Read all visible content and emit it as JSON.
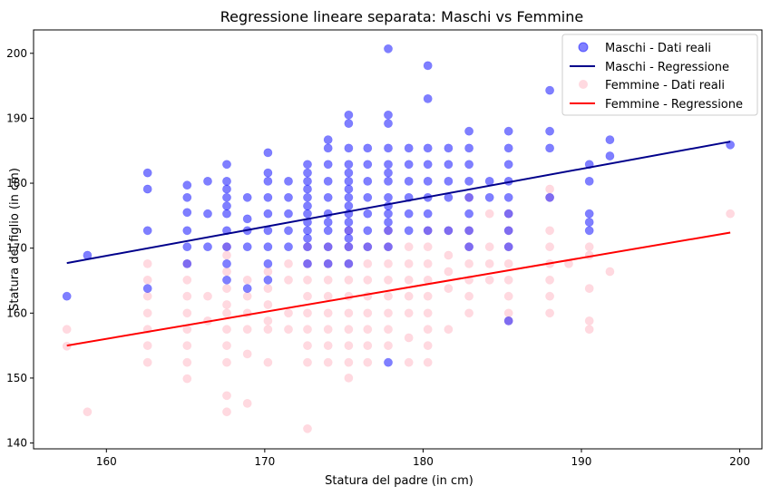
{
  "chart_data": {
    "type": "scatter",
    "title": "Regressione lineare separata: Maschi vs Femmine",
    "xlabel": "Statura del padre (in cm)",
    "ylabel": "Statura del figlio (in cm)",
    "xlim": [
      155.4,
      201.4
    ],
    "ylim": [
      139.1,
      203.6
    ],
    "xticks": [
      160,
      170,
      180,
      190,
      200
    ],
    "yticks": [
      140,
      150,
      160,
      170,
      180,
      190,
      200
    ],
    "grid": false,
    "legend_position": "top-right",
    "series": [
      {
        "name": "Maschi - Dati reali",
        "kind": "scatter",
        "color": "#0000ff",
        "opacity": 0.5,
        "points": [
          [
            157.5,
            162.6
          ],
          [
            158.8,
            168.9
          ],
          [
            162.6,
            181.6
          ],
          [
            162.6,
            179.1
          ],
          [
            162.6,
            172.7
          ],
          [
            162.6,
            163.8
          ],
          [
            165.1,
            179.7
          ],
          [
            165.1,
            177.8
          ],
          [
            165.1,
            175.5
          ],
          [
            165.1,
            172.7
          ],
          [
            165.1,
            170.2
          ],
          [
            165.1,
            167.6
          ],
          [
            166.4,
            180.3
          ],
          [
            166.4,
            175.3
          ],
          [
            166.4,
            170.2
          ],
          [
            167.6,
            182.9
          ],
          [
            167.6,
            180.3
          ],
          [
            167.6,
            179.1
          ],
          [
            167.6,
            177.8
          ],
          [
            167.6,
            176.5
          ],
          [
            167.6,
            175.3
          ],
          [
            167.6,
            172.7
          ],
          [
            167.6,
            170.2
          ],
          [
            167.6,
            167.6
          ],
          [
            167.6,
            165.1
          ],
          [
            168.9,
            177.8
          ],
          [
            168.9,
            174.5
          ],
          [
            168.9,
            172.7
          ],
          [
            168.9,
            170.2
          ],
          [
            168.9,
            163.8
          ],
          [
            170.2,
            184.7
          ],
          [
            170.2,
            181.6
          ],
          [
            170.2,
            180.3
          ],
          [
            170.2,
            177.8
          ],
          [
            170.2,
            175.3
          ],
          [
            170.2,
            172.7
          ],
          [
            170.2,
            170.2
          ],
          [
            170.2,
            167.6
          ],
          [
            170.2,
            165.1
          ],
          [
            171.5,
            180.3
          ],
          [
            171.5,
            177.8
          ],
          [
            171.5,
            175.3
          ],
          [
            171.5,
            172.7
          ],
          [
            171.5,
            170.2
          ],
          [
            172.7,
            182.9
          ],
          [
            172.7,
            181.6
          ],
          [
            172.7,
            180.3
          ],
          [
            172.7,
            179.1
          ],
          [
            172.7,
            177.8
          ],
          [
            172.7,
            176.5
          ],
          [
            172.7,
            175.3
          ],
          [
            172.7,
            174.0
          ],
          [
            172.7,
            172.7
          ],
          [
            172.7,
            171.5
          ],
          [
            172.7,
            170.2
          ],
          [
            172.7,
            167.6
          ],
          [
            174.0,
            186.7
          ],
          [
            174.0,
            185.4
          ],
          [
            174.0,
            182.9
          ],
          [
            174.0,
            180.3
          ],
          [
            174.0,
            177.8
          ],
          [
            174.0,
            175.3
          ],
          [
            174.0,
            174.0
          ],
          [
            174.0,
            172.7
          ],
          [
            174.0,
            170.2
          ],
          [
            174.0,
            167.6
          ],
          [
            175.3,
            190.5
          ],
          [
            175.3,
            189.2
          ],
          [
            175.3,
            185.4
          ],
          [
            175.3,
            182.9
          ],
          [
            175.3,
            181.6
          ],
          [
            175.3,
            180.3
          ],
          [
            175.3,
            179.1
          ],
          [
            175.3,
            177.8
          ],
          [
            175.3,
            176.5
          ],
          [
            175.3,
            175.3
          ],
          [
            175.3,
            174.0
          ],
          [
            175.3,
            172.7
          ],
          [
            175.3,
            171.5
          ],
          [
            175.3,
            170.2
          ],
          [
            175.3,
            167.6
          ],
          [
            176.5,
            185.4
          ],
          [
            176.5,
            182.9
          ],
          [
            176.5,
            180.3
          ],
          [
            176.5,
            177.8
          ],
          [
            176.5,
            175.3
          ],
          [
            176.5,
            172.7
          ],
          [
            176.5,
            170.2
          ],
          [
            177.8,
            200.7
          ],
          [
            177.8,
            190.5
          ],
          [
            177.8,
            189.2
          ],
          [
            177.8,
            185.4
          ],
          [
            177.8,
            182.9
          ],
          [
            177.8,
            181.6
          ],
          [
            177.8,
            180.3
          ],
          [
            177.8,
            177.8
          ],
          [
            177.8,
            176.5
          ],
          [
            177.8,
            175.3
          ],
          [
            177.8,
            174.0
          ],
          [
            177.8,
            172.7
          ],
          [
            177.8,
            170.2
          ],
          [
            177.8,
            152.4
          ],
          [
            179.1,
            185.4
          ],
          [
            179.1,
            182.9
          ],
          [
            179.1,
            180.3
          ],
          [
            179.1,
            177.8
          ],
          [
            179.1,
            175.3
          ],
          [
            179.1,
            172.7
          ],
          [
            180.3,
            198.1
          ],
          [
            180.3,
            193.0
          ],
          [
            180.3,
            185.4
          ],
          [
            180.3,
            182.9
          ],
          [
            180.3,
            180.3
          ],
          [
            180.3,
            177.8
          ],
          [
            180.3,
            175.3
          ],
          [
            180.3,
            172.7
          ],
          [
            181.6,
            185.4
          ],
          [
            181.6,
            182.9
          ],
          [
            181.6,
            180.3
          ],
          [
            181.6,
            177.8
          ],
          [
            181.6,
            172.7
          ],
          [
            182.9,
            188.0
          ],
          [
            182.9,
            185.4
          ],
          [
            182.9,
            182.9
          ],
          [
            182.9,
            180.3
          ],
          [
            182.9,
            177.8
          ],
          [
            182.9,
            175.3
          ],
          [
            182.9,
            172.7
          ],
          [
            182.9,
            170.2
          ],
          [
            184.2,
            180.3
          ],
          [
            184.2,
            177.8
          ],
          [
            185.4,
            188.0
          ],
          [
            185.4,
            185.4
          ],
          [
            185.4,
            182.9
          ],
          [
            185.4,
            180.3
          ],
          [
            185.4,
            177.8
          ],
          [
            185.4,
            175.3
          ],
          [
            185.4,
            172.7
          ],
          [
            185.4,
            170.2
          ],
          [
            185.4,
            158.8
          ],
          [
            188.0,
            194.3
          ],
          [
            188.0,
            188.0
          ],
          [
            188.0,
            185.4
          ],
          [
            188.0,
            177.8
          ],
          [
            190.5,
            182.9
          ],
          [
            190.5,
            180.3
          ],
          [
            190.5,
            175.3
          ],
          [
            190.5,
            174.0
          ],
          [
            190.5,
            172.7
          ],
          [
            191.8,
            186.7
          ],
          [
            191.8,
            184.2
          ],
          [
            199.4,
            185.9
          ]
        ]
      },
      {
        "name": "Maschi - Regressione",
        "kind": "line",
        "color": "#00008b",
        "x": [
          157.5,
          199.4
        ],
        "y": [
          167.7,
          186.4
        ]
      },
      {
        "name": "Femmine - Dati reali",
        "kind": "scatter",
        "color": "#ffc0cb",
        "opacity": 0.6,
        "points": [
          [
            157.5,
            157.5
          ],
          [
            157.5,
            154.9
          ],
          [
            158.8,
            144.8
          ],
          [
            162.6,
            167.6
          ],
          [
            162.6,
            165.1
          ],
          [
            162.6,
            162.6
          ],
          [
            162.6,
            160.0
          ],
          [
            162.6,
            157.5
          ],
          [
            162.6,
            155.0
          ],
          [
            162.6,
            152.4
          ],
          [
            165.1,
            167.6
          ],
          [
            165.1,
            165.1
          ],
          [
            165.1,
            162.6
          ],
          [
            165.1,
            160.0
          ],
          [
            165.1,
            157.5
          ],
          [
            165.1,
            155.0
          ],
          [
            165.1,
            152.4
          ],
          [
            165.1,
            149.9
          ],
          [
            166.4,
            162.6
          ],
          [
            166.4,
            158.8
          ],
          [
            167.6,
            170.2
          ],
          [
            167.6,
            168.9
          ],
          [
            167.6,
            166.4
          ],
          [
            167.6,
            163.8
          ],
          [
            167.6,
            161.3
          ],
          [
            167.6,
            160.0
          ],
          [
            167.6,
            157.5
          ],
          [
            167.6,
            155.0
          ],
          [
            167.6,
            152.4
          ],
          [
            167.6,
            147.3
          ],
          [
            167.6,
            144.8
          ],
          [
            168.9,
            165.1
          ],
          [
            168.9,
            162.6
          ],
          [
            168.9,
            160.0
          ],
          [
            168.9,
            157.5
          ],
          [
            168.9,
            153.7
          ],
          [
            168.9,
            146.1
          ],
          [
            170.2,
            166.4
          ],
          [
            170.2,
            163.8
          ],
          [
            170.2,
            161.3
          ],
          [
            170.2,
            158.8
          ],
          [
            170.2,
            157.5
          ],
          [
            170.2,
            152.4
          ],
          [
            171.5,
            167.6
          ],
          [
            171.5,
            165.1
          ],
          [
            171.5,
            160.0
          ],
          [
            171.5,
            157.5
          ],
          [
            172.7,
            170.2
          ],
          [
            172.7,
            167.6
          ],
          [
            172.7,
            165.1
          ],
          [
            172.7,
            162.6
          ],
          [
            172.7,
            160.0
          ],
          [
            172.7,
            157.5
          ],
          [
            172.7,
            155.0
          ],
          [
            172.7,
            152.4
          ],
          [
            172.7,
            142.2
          ],
          [
            174.0,
            170.2
          ],
          [
            174.0,
            167.6
          ],
          [
            174.0,
            165.1
          ],
          [
            174.0,
            162.6
          ],
          [
            174.0,
            160.0
          ],
          [
            174.0,
            157.5
          ],
          [
            174.0,
            155.0
          ],
          [
            174.0,
            152.4
          ],
          [
            175.3,
            172.7
          ],
          [
            175.3,
            170.2
          ],
          [
            175.3,
            167.6
          ],
          [
            175.3,
            165.1
          ],
          [
            175.3,
            162.6
          ],
          [
            175.3,
            160.0
          ],
          [
            175.3,
            157.5
          ],
          [
            175.3,
            155.0
          ],
          [
            175.3,
            152.4
          ],
          [
            175.3,
            150.0
          ],
          [
            176.5,
            170.2
          ],
          [
            176.5,
            167.6
          ],
          [
            176.5,
            165.1
          ],
          [
            176.5,
            162.6
          ],
          [
            176.5,
            160.0
          ],
          [
            176.5,
            157.5
          ],
          [
            176.5,
            155.0
          ],
          [
            176.5,
            152.4
          ],
          [
            177.8,
            172.7
          ],
          [
            177.8,
            170.2
          ],
          [
            177.8,
            167.6
          ],
          [
            177.8,
            165.1
          ],
          [
            177.8,
            162.6
          ],
          [
            177.8,
            160.0
          ],
          [
            177.8,
            157.5
          ],
          [
            177.8,
            155.0
          ],
          [
            179.1,
            170.2
          ],
          [
            179.1,
            167.6
          ],
          [
            179.1,
            165.1
          ],
          [
            179.1,
            162.6
          ],
          [
            179.1,
            160.0
          ],
          [
            179.1,
            156.2
          ],
          [
            179.1,
            152.4
          ],
          [
            180.3,
            172.7
          ],
          [
            180.3,
            170.2
          ],
          [
            180.3,
            167.6
          ],
          [
            180.3,
            165.1
          ],
          [
            180.3,
            162.6
          ],
          [
            180.3,
            160.0
          ],
          [
            180.3,
            157.5
          ],
          [
            180.3,
            155.0
          ],
          [
            180.3,
            152.4
          ],
          [
            181.6,
            172.7
          ],
          [
            181.6,
            168.9
          ],
          [
            181.6,
            166.4
          ],
          [
            181.6,
            163.8
          ],
          [
            181.6,
            157.5
          ],
          [
            182.9,
            177.8
          ],
          [
            182.9,
            172.7
          ],
          [
            182.9,
            170.2
          ],
          [
            182.9,
            167.6
          ],
          [
            182.9,
            165.1
          ],
          [
            182.9,
            162.6
          ],
          [
            182.9,
            160.0
          ],
          [
            184.2,
            175.3
          ],
          [
            184.2,
            170.2
          ],
          [
            184.2,
            167.6
          ],
          [
            184.2,
            165.1
          ],
          [
            185.4,
            175.3
          ],
          [
            185.4,
            172.7
          ],
          [
            185.4,
            170.2
          ],
          [
            185.4,
            167.6
          ],
          [
            185.4,
            165.1
          ],
          [
            185.4,
            162.6
          ],
          [
            185.4,
            160.0
          ],
          [
            185.4,
            158.8
          ],
          [
            188.0,
            179.1
          ],
          [
            188.0,
            177.8
          ],
          [
            188.0,
            172.7
          ],
          [
            188.0,
            170.2
          ],
          [
            188.0,
            167.6
          ],
          [
            188.0,
            165.1
          ],
          [
            188.0,
            162.6
          ],
          [
            188.0,
            160.0
          ],
          [
            189.2,
            167.6
          ],
          [
            190.5,
            170.2
          ],
          [
            190.5,
            168.9
          ],
          [
            190.5,
            163.8
          ],
          [
            190.5,
            158.8
          ],
          [
            190.5,
            157.5
          ],
          [
            191.8,
            166.4
          ],
          [
            199.4,
            175.3
          ]
        ]
      },
      {
        "name": "Femmine - Regressione",
        "kind": "line",
        "color": "#ff0000",
        "x": [
          157.5,
          199.4
        ],
        "y": [
          155.0,
          172.4
        ]
      }
    ]
  }
}
